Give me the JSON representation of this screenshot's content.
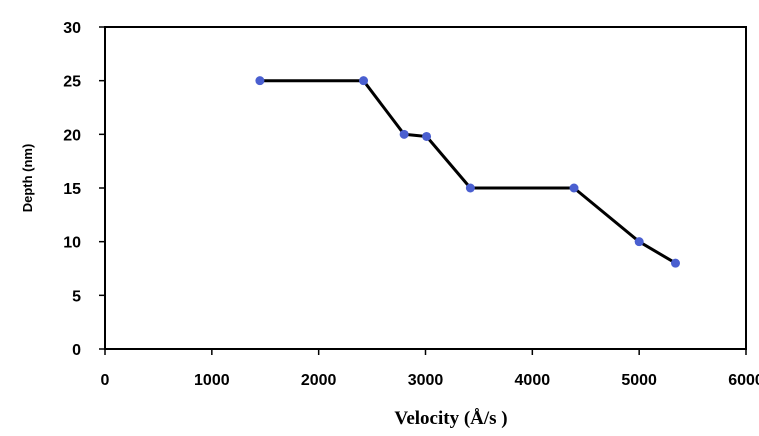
{
  "chart_data": {
    "type": "line",
    "title": "",
    "xlabel": "Velocity (Å/s )",
    "ylabel": "Depth (nm)",
    "xlim": [
      0,
      6000
    ],
    "ylim": [
      0,
      30
    ],
    "x_ticks": [
      0,
      1000,
      2000,
      3000,
      4000,
      5000,
      6000
    ],
    "y_ticks": [
      0,
      5,
      10,
      15,
      20,
      25,
      30
    ],
    "x_tick_labels": [
      "0",
      "1000",
      "2000",
      "3000",
      "4000",
      "5000",
      "6000"
    ],
    "y_tick_labels": [
      "0",
      "5",
      "10",
      "15",
      "20",
      "25",
      "30"
    ],
    "grid": false,
    "legend": "none",
    "series": [
      {
        "x": [
          1450,
          2420,
          2800,
          3010,
          3420,
          4390,
          5000,
          5340
        ],
        "y": [
          25,
          25,
          20,
          19.8,
          15,
          15,
          10,
          8
        ],
        "line_color": "#000000",
        "marker_color": "#4a5fd0"
      }
    ]
  }
}
